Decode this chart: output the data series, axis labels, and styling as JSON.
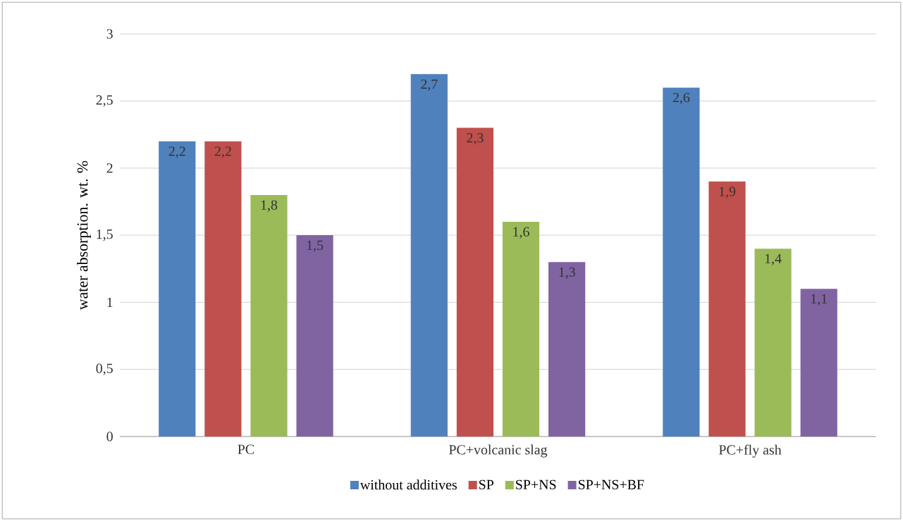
{
  "chart_data": {
    "type": "bar",
    "ylabel": "water absorption. wt. %",
    "categories": [
      "PC",
      "PC+volcanic slag",
      "PC+fly ash"
    ],
    "series": [
      {
        "name": "without additives",
        "color": "#4f81bd",
        "values": [
          2.2,
          2.7,
          2.6
        ],
        "value_labels": [
          "2,2",
          "2,7",
          "2,6"
        ]
      },
      {
        "name": "SP",
        "color": "#c0504d",
        "values": [
          2.2,
          2.3,
          1.9
        ],
        "value_labels": [
          "2,2",
          "2,3",
          "1,9"
        ]
      },
      {
        "name": "SP+NS",
        "color": "#9bbb59",
        "values": [
          1.8,
          1.6,
          1.4
        ],
        "value_labels": [
          "1,8",
          "1,6",
          "1,4"
        ]
      },
      {
        "name": "SP+NS+BF",
        "color": "#8064a2",
        "values": [
          1.5,
          1.3,
          1.1
        ],
        "value_labels": [
          "1,5",
          "1,3",
          "1,1"
        ]
      }
    ],
    "ylim": [
      0,
      3
    ],
    "yticks": [
      0,
      {
        "value": 0.5,
        "label": "0,5"
      },
      1,
      {
        "value": 1.5,
        "label": "1,5"
      },
      2,
      {
        "value": 2.5,
        "label": "2,5"
      },
      3
    ],
    "grid": "y",
    "legend": "bottom"
  }
}
